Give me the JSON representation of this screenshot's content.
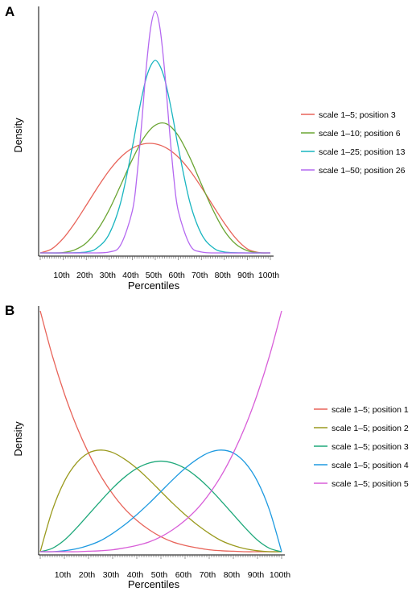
{
  "chart_data": [
    {
      "panel_label": "A",
      "type": "line",
      "xlabel": "Percentiles",
      "ylabel": "Density",
      "x_tick_labels": [
        "10th",
        "20th",
        "30th",
        "40th",
        "50th",
        "60th",
        "70th",
        "80th",
        "90th",
        "100th"
      ],
      "xlim": [
        0,
        100
      ],
      "grid": false,
      "legend_position": "right",
      "series": [
        {
          "name": "scale 1–5; position 3",
          "color": "#E8645A",
          "x": [
            0,
            5,
            10,
            15,
            20,
            25,
            30,
            35,
            40,
            45,
            50,
            55,
            60,
            65,
            70,
            75,
            80,
            85,
            90,
            95,
            100
          ],
          "y": [
            0.0,
            0.22,
            0.8,
            1.64,
            2.62,
            3.62,
            4.54,
            5.27,
            5.76,
            6.0,
            6.0,
            5.76,
            5.27,
            4.54,
            3.62,
            2.62,
            1.64,
            0.8,
            0.22,
            0.02,
            0.0
          ]
        },
        {
          "name": "scale 1–10; position 6",
          "color": "#6BA534",
          "x": [
            0,
            5,
            10,
            15,
            20,
            25,
            30,
            35,
            40,
            45,
            50,
            55,
            60,
            65,
            70,
            75,
            80,
            85,
            90,
            95,
            100
          ],
          "y": [
            0.0,
            0.0,
            0.02,
            0.17,
            0.55,
            1.29,
            2.38,
            3.74,
            5.14,
            6.33,
            7.03,
            7.1,
            6.45,
            5.25,
            3.79,
            2.38,
            1.22,
            0.48,
            0.12,
            0.01,
            0.0
          ]
        },
        {
          "name": "scale 1–25; position 13",
          "color": "#19B5C0",
          "x": [
            0,
            10,
            20,
            25,
            30,
            35,
            40,
            42,
            44,
            46,
            48,
            50,
            52,
            54,
            56,
            58,
            60,
            65,
            70,
            75,
            80,
            90,
            100
          ],
          "y": [
            0.0,
            0.0,
            0.05,
            0.3,
            1.05,
            2.8,
            5.8,
            7.2,
            8.5,
            9.6,
            10.3,
            10.6,
            10.3,
            9.6,
            8.5,
            7.2,
            5.8,
            2.8,
            1.05,
            0.3,
            0.05,
            0.0,
            0.0
          ]
        },
        {
          "name": "scale 1–50; position 26",
          "color": "#B468F0",
          "x": [
            0,
            20,
            30,
            35,
            40,
            42,
            44,
            46,
            48,
            50,
            52,
            54,
            56,
            58,
            60,
            65,
            70,
            80,
            100
          ],
          "y": [
            0.0,
            0.0,
            0.05,
            0.45,
            2.3,
            4.2,
            7.0,
            10.1,
            12.4,
            13.3,
            12.4,
            10.1,
            7.0,
            4.2,
            2.3,
            0.45,
            0.05,
            0.0,
            0.0
          ]
        }
      ]
    },
    {
      "panel_label": "B",
      "type": "line",
      "xlabel": "Percentiles",
      "ylabel": "Density",
      "x_tick_labels": [
        "10th",
        "20th",
        "30th",
        "40th",
        "50th",
        "60th",
        "70th",
        "80th",
        "90th",
        "100th"
      ],
      "xlim": [
        0,
        100
      ],
      "grid": false,
      "legend_position": "right",
      "series": [
        {
          "name": "scale 1–5; position 1",
          "color": "#E8645A",
          "x": [
            0,
            5,
            10,
            15,
            20,
            25,
            30,
            35,
            40,
            45,
            50,
            55,
            60,
            65,
            70,
            75,
            80,
            85,
            90,
            95,
            100
          ],
          "y": [
            5.0,
            4.07,
            3.28,
            2.61,
            2.05,
            1.58,
            1.2,
            0.89,
            0.65,
            0.46,
            0.31,
            0.2,
            0.13,
            0.08,
            0.04,
            0.02,
            0.01,
            0.0,
            0.0,
            0.0,
            0.0
          ]
        },
        {
          "name": "scale 1–5; position 2",
          "color": "#9A9A1E",
          "x": [
            0,
            5,
            10,
            15,
            20,
            25,
            30,
            35,
            40,
            45,
            50,
            55,
            60,
            65,
            70,
            75,
            80,
            85,
            90,
            95,
            100
          ],
          "y": [
            0.0,
            0.86,
            1.46,
            1.84,
            2.05,
            2.11,
            2.06,
            1.92,
            1.73,
            1.5,
            1.25,
            1.0,
            0.77,
            0.56,
            0.38,
            0.23,
            0.13,
            0.06,
            0.02,
            0.0,
            0.0
          ]
        },
        {
          "name": "scale 1–5; position 3",
          "color": "#1EA87A",
          "x": [
            0,
            5,
            10,
            15,
            20,
            25,
            30,
            35,
            40,
            45,
            50,
            55,
            60,
            65,
            70,
            75,
            80,
            85,
            90,
            95,
            100
          ],
          "y": [
            0.0,
            0.07,
            0.24,
            0.49,
            0.77,
            1.05,
            1.32,
            1.55,
            1.73,
            1.84,
            1.88,
            1.84,
            1.73,
            1.55,
            1.32,
            1.05,
            0.77,
            0.49,
            0.24,
            0.07,
            0.0
          ]
        },
        {
          "name": "scale 1–5; position 4",
          "color": "#1E9AE0",
          "x": [
            0,
            5,
            10,
            15,
            20,
            25,
            30,
            35,
            40,
            45,
            50,
            55,
            60,
            65,
            70,
            75,
            80,
            85,
            90,
            95,
            100
          ],
          "y": [
            0.0,
            0.0,
            0.02,
            0.06,
            0.13,
            0.23,
            0.38,
            0.56,
            0.77,
            1.0,
            1.25,
            1.5,
            1.73,
            1.92,
            2.06,
            2.11,
            2.05,
            1.84,
            1.46,
            0.86,
            0.0
          ]
        },
        {
          "name": "scale 1–5; position 5",
          "color": "#D85ED8",
          "x": [
            0,
            5,
            10,
            15,
            20,
            25,
            30,
            35,
            40,
            45,
            50,
            55,
            60,
            65,
            70,
            75,
            80,
            85,
            90,
            95,
            100
          ],
          "y": [
            0.0,
            0.0,
            0.0,
            0.0,
            0.01,
            0.02,
            0.04,
            0.08,
            0.13,
            0.2,
            0.31,
            0.46,
            0.65,
            0.89,
            1.2,
            1.58,
            2.05,
            2.61,
            3.28,
            4.07,
            5.0
          ]
        }
      ]
    }
  ]
}
